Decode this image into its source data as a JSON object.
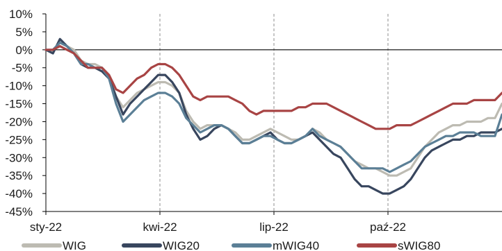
{
  "chart_data": {
    "type": "line",
    "title": "",
    "xlabel": "",
    "ylabel": "",
    "x_ticks": [
      "sty-22",
      "kwi-22",
      "lip-22",
      "paź-22"
    ],
    "y_ticks": [
      "10%",
      "5%",
      "0%",
      "-5%",
      "-10%",
      "-15%",
      "-20%",
      "-25%",
      "-30%",
      "-35%",
      "-40%",
      "-45%"
    ],
    "ylim": [
      -45,
      10
    ],
    "y_unit": "%",
    "grid": "dashed vertical at x ticks; solid reference line at 0%",
    "legend_position": "bottom",
    "series": [
      {
        "name": "WIG",
        "color": "#bdbbb2",
        "points": [
          [
            0,
            0
          ],
          [
            1,
            -0.5
          ],
          [
            2,
            2
          ],
          [
            3,
            1
          ],
          [
            4,
            0
          ],
          [
            5,
            -3
          ],
          [
            6,
            -4
          ],
          [
            7,
            -4
          ],
          [
            8,
            -5
          ],
          [
            9,
            -7
          ],
          [
            10,
            -13
          ],
          [
            11,
            -16
          ],
          [
            12,
            -14
          ],
          [
            13,
            -12
          ],
          [
            14,
            -11
          ],
          [
            15,
            -10
          ],
          [
            16,
            -9
          ],
          [
            17,
            -9
          ],
          [
            18,
            -10
          ],
          [
            19,
            -12
          ],
          [
            20,
            -17
          ],
          [
            21,
            -20
          ],
          [
            22,
            -22
          ],
          [
            23,
            -21
          ],
          [
            24,
            -21
          ],
          [
            25,
            -21
          ],
          [
            26,
            -22
          ],
          [
            27,
            -23
          ],
          [
            28,
            -25
          ],
          [
            29,
            -25
          ],
          [
            30,
            -24
          ],
          [
            31,
            -23
          ],
          [
            32,
            -22
          ],
          [
            33,
            -23
          ],
          [
            34,
            -24
          ],
          [
            35,
            -25
          ],
          [
            36,
            -25
          ],
          [
            37,
            -24
          ],
          [
            38,
            -22
          ],
          [
            39,
            -23
          ],
          [
            40,
            -25
          ],
          [
            41,
            -26
          ],
          [
            42,
            -27
          ],
          [
            43,
            -29
          ],
          [
            44,
            -31
          ],
          [
            45,
            -32
          ],
          [
            46,
            -33
          ],
          [
            47,
            -33
          ],
          [
            48,
            -34
          ],
          [
            49,
            -35
          ],
          [
            50,
            -35
          ],
          [
            51,
            -34
          ],
          [
            52,
            -33
          ],
          [
            53,
            -30
          ],
          [
            54,
            -27
          ],
          [
            55,
            -25
          ],
          [
            56,
            -23
          ],
          [
            57,
            -22
          ],
          [
            58,
            -21
          ],
          [
            59,
            -21
          ],
          [
            60,
            -20
          ],
          [
            61,
            -20
          ],
          [
            62,
            -20
          ],
          [
            63,
            -19
          ],
          [
            64,
            -19
          ],
          [
            65,
            -15
          ]
        ]
      },
      {
        "name": "WIG20",
        "color": "#38465e",
        "points": [
          [
            0,
            0
          ],
          [
            1,
            -1
          ],
          [
            2,
            3
          ],
          [
            3,
            1
          ],
          [
            4,
            -1
          ],
          [
            5,
            -4
          ],
          [
            6,
            -5
          ],
          [
            7,
            -5
          ],
          [
            8,
            -6
          ],
          [
            9,
            -8
          ],
          [
            10,
            -13
          ],
          [
            11,
            -18
          ],
          [
            12,
            -15
          ],
          [
            13,
            -13
          ],
          [
            14,
            -11
          ],
          [
            15,
            -9
          ],
          [
            16,
            -7
          ],
          [
            17,
            -7
          ],
          [
            18,
            -9
          ],
          [
            19,
            -12
          ],
          [
            20,
            -18
          ],
          [
            21,
            -22
          ],
          [
            22,
            -25
          ],
          [
            23,
            -24
          ],
          [
            24,
            -22
          ],
          [
            25,
            -21
          ],
          [
            26,
            -22
          ],
          [
            27,
            -24
          ],
          [
            28,
            -26
          ],
          [
            29,
            -26
          ],
          [
            30,
            -25
          ],
          [
            31,
            -24
          ],
          [
            32,
            -23
          ],
          [
            33,
            -25
          ],
          [
            34,
            -26
          ],
          [
            35,
            -26
          ],
          [
            36,
            -25
          ],
          [
            37,
            -24
          ],
          [
            38,
            -23
          ],
          [
            39,
            -25
          ],
          [
            40,
            -27
          ],
          [
            41,
            -29
          ],
          [
            42,
            -30
          ],
          [
            43,
            -33
          ],
          [
            44,
            -36
          ],
          [
            45,
            -38
          ],
          [
            46,
            -38
          ],
          [
            47,
            -39
          ],
          [
            48,
            -40
          ],
          [
            49,
            -40
          ],
          [
            50,
            -39
          ],
          [
            51,
            -38
          ],
          [
            52,
            -36
          ],
          [
            53,
            -33
          ],
          [
            54,
            -30
          ],
          [
            55,
            -28
          ],
          [
            56,
            -27
          ],
          [
            57,
            -26
          ],
          [
            58,
            -25
          ],
          [
            59,
            -25
          ],
          [
            60,
            -24
          ],
          [
            61,
            -24
          ],
          [
            62,
            -23
          ],
          [
            63,
            -23
          ],
          [
            64,
            -23
          ],
          [
            65,
            -22
          ]
        ]
      },
      {
        "name": "mWIG40",
        "color": "#5b7f96",
        "points": [
          [
            0,
            0
          ],
          [
            1,
            0
          ],
          [
            2,
            2
          ],
          [
            3,
            1
          ],
          [
            4,
            -1
          ],
          [
            5,
            -4
          ],
          [
            6,
            -4
          ],
          [
            7,
            -5
          ],
          [
            8,
            -5
          ],
          [
            9,
            -8
          ],
          [
            10,
            -15
          ],
          [
            11,
            -20
          ],
          [
            12,
            -18
          ],
          [
            13,
            -16
          ],
          [
            14,
            -14
          ],
          [
            15,
            -13
          ],
          [
            16,
            -12
          ],
          [
            17,
            -12
          ],
          [
            18,
            -13
          ],
          [
            19,
            -15
          ],
          [
            20,
            -19
          ],
          [
            21,
            -21
          ],
          [
            22,
            -23
          ],
          [
            23,
            -22
          ],
          [
            24,
            -21
          ],
          [
            25,
            -21
          ],
          [
            26,
            -22
          ],
          [
            27,
            -24
          ],
          [
            28,
            -26
          ],
          [
            29,
            -26
          ],
          [
            30,
            -25
          ],
          [
            31,
            -24
          ],
          [
            32,
            -24
          ],
          [
            33,
            -25
          ],
          [
            34,
            -26
          ],
          [
            35,
            -26
          ],
          [
            36,
            -25
          ],
          [
            37,
            -24
          ],
          [
            38,
            -22
          ],
          [
            39,
            -24
          ],
          [
            40,
            -25
          ],
          [
            41,
            -26
          ],
          [
            42,
            -27
          ],
          [
            43,
            -29
          ],
          [
            44,
            -31
          ],
          [
            45,
            -33
          ],
          [
            46,
            -33
          ],
          [
            47,
            -33
          ],
          [
            48,
            -33
          ],
          [
            49,
            -34
          ],
          [
            50,
            -33
          ],
          [
            51,
            -32
          ],
          [
            52,
            -31
          ],
          [
            53,
            -29
          ],
          [
            54,
            -27
          ],
          [
            55,
            -26
          ],
          [
            56,
            -25
          ],
          [
            57,
            -24
          ],
          [
            58,
            -24
          ],
          [
            59,
            -23
          ],
          [
            60,
            -23
          ],
          [
            61,
            -23
          ],
          [
            62,
            -24
          ],
          [
            63,
            -24
          ],
          [
            64,
            -24
          ],
          [
            65,
            -18
          ]
        ]
      },
      {
        "name": "sWIG80",
        "color": "#a84444",
        "points": [
          [
            0,
            0
          ],
          [
            1,
            0
          ],
          [
            2,
            1
          ],
          [
            3,
            0
          ],
          [
            4,
            -1
          ],
          [
            5,
            -3
          ],
          [
            6,
            -5
          ],
          [
            7,
            -5
          ],
          [
            8,
            -5
          ],
          [
            9,
            -7
          ],
          [
            10,
            -11
          ],
          [
            11,
            -12
          ],
          [
            12,
            -10
          ],
          [
            13,
            -8
          ],
          [
            14,
            -7
          ],
          [
            15,
            -5
          ],
          [
            16,
            -4
          ],
          [
            17,
            -4
          ],
          [
            18,
            -5
          ],
          [
            19,
            -7
          ],
          [
            20,
            -10
          ],
          [
            21,
            -13
          ],
          [
            22,
            -14
          ],
          [
            23,
            -13
          ],
          [
            24,
            -13
          ],
          [
            25,
            -13
          ],
          [
            26,
            -13
          ],
          [
            27,
            -14
          ],
          [
            28,
            -15
          ],
          [
            29,
            -17
          ],
          [
            30,
            -18
          ],
          [
            31,
            -17
          ],
          [
            32,
            -17
          ],
          [
            33,
            -17
          ],
          [
            34,
            -17
          ],
          [
            35,
            -17
          ],
          [
            36,
            -16
          ],
          [
            37,
            -16
          ],
          [
            38,
            -15
          ],
          [
            39,
            -15
          ],
          [
            40,
            -15
          ],
          [
            41,
            -16
          ],
          [
            42,
            -17
          ],
          [
            43,
            -18
          ],
          [
            44,
            -19
          ],
          [
            45,
            -20
          ],
          [
            46,
            -21
          ],
          [
            47,
            -22
          ],
          [
            48,
            -22
          ],
          [
            49,
            -22
          ],
          [
            50,
            -21
          ],
          [
            51,
            -21
          ],
          [
            52,
            -21
          ],
          [
            53,
            -20
          ],
          [
            54,
            -19
          ],
          [
            55,
            -18
          ],
          [
            56,
            -17
          ],
          [
            57,
            -16
          ],
          [
            58,
            -15
          ],
          [
            59,
            -15
          ],
          [
            60,
            -15
          ],
          [
            61,
            -14
          ],
          [
            62,
            -14
          ],
          [
            63,
            -14
          ],
          [
            64,
            -14
          ],
          [
            65,
            -12
          ]
        ]
      }
    ]
  }
}
